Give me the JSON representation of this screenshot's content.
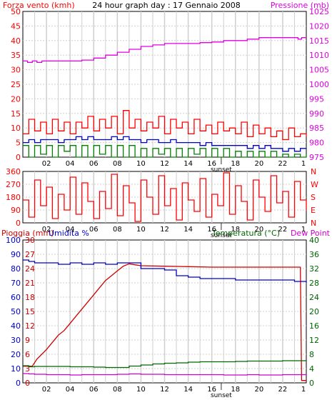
{
  "page": {
    "title": "24 hour graph day : 17 Gennaio 2008",
    "sunset_label": "sunset"
  },
  "colors": {
    "wind": "#ff0000",
    "pressure": "#e000e0",
    "gust": "#0000cc",
    "wind_green": "#008000",
    "direction": "#ff0000",
    "rain": "#cc0000",
    "humidity": "#0000cc",
    "temperature": "#006600",
    "dewpoint": "#cc00cc",
    "grid": "#cfcfcf",
    "sunset_line": "#333333"
  },
  "chart_data": [
    {
      "id": "wind_pressure",
      "type": "line",
      "left_axis_label": "Forza vento (kmh)",
      "right_axis_label": "Pressione (mb)",
      "ylim_left": [
        0,
        50
      ],
      "yticks_left": [
        0,
        5,
        10,
        15,
        20,
        25,
        30,
        35,
        40,
        45,
        50
      ],
      "ylim_right": [
        975,
        1025
      ],
      "yticks_right": [
        975,
        980,
        985,
        990,
        995,
        1000,
        1005,
        1010,
        1015,
        1020,
        1025
      ],
      "x_range": [
        0,
        24
      ],
      "x_ticks": [
        "02",
        "04",
        "06",
        "08",
        "10",
        "12",
        "14",
        "16",
        "18",
        "20",
        "22",
        "1"
      ],
      "sunset_hour": 16.8,
      "series": [
        {
          "key": "pressure",
          "axis": "right",
          "x": [
            0,
            0.4,
            0.8,
            1.2,
            1.6,
            2.0,
            3.0,
            4.0,
            5.0,
            6.0,
            7.0,
            8.0,
            9.0,
            10.0,
            11.0,
            12.0,
            13.0,
            14.0,
            15.0,
            16.0,
            17.0,
            18.0,
            19.0,
            20.0,
            21.0,
            22.0,
            23.0,
            23.3,
            23.6,
            24.0
          ],
          "y": [
            1008,
            1007.5,
            1008,
            1007.5,
            1008,
            1008,
            1008,
            1008,
            1008.3,
            1009,
            1010,
            1011,
            1012,
            1013,
            1013.5,
            1014,
            1014,
            1014,
            1014.3,
            1014.5,
            1015,
            1015,
            1015.5,
            1016,
            1016,
            1016,
            1016,
            1015.5,
            1016,
            1016
          ]
        },
        {
          "key": "wind",
          "axis": "left",
          "x": [
            0,
            0.5,
            1,
            1.5,
            2,
            2.5,
            3,
            3.5,
            4,
            4.5,
            5,
            5.5,
            6,
            6.5,
            7,
            7.5,
            8,
            8.5,
            9,
            9.5,
            10,
            10.5,
            11,
            11.5,
            12,
            12.5,
            13,
            13.5,
            14,
            14.5,
            15,
            15.5,
            16,
            16.5,
            17,
            17.5,
            18,
            18.5,
            19,
            19.5,
            20,
            20.5,
            21,
            21.5,
            22,
            22.5,
            23,
            23.5,
            24
          ],
          "y": [
            8,
            13,
            9,
            12,
            8,
            13,
            9,
            12,
            8,
            12,
            10,
            14,
            9,
            13,
            10,
            14,
            8,
            16,
            10,
            13,
            9,
            12,
            10,
            14,
            8,
            13,
            10,
            12,
            8,
            13,
            9,
            11,
            8,
            12,
            9,
            10,
            8,
            12,
            7,
            11,
            8,
            10,
            7,
            9,
            6,
            10,
            7,
            8,
            7
          ]
        },
        {
          "key": "gust",
          "axis": "left",
          "x": [
            0,
            0.5,
            1,
            1.5,
            2,
            2.5,
            3,
            3.5,
            4,
            4.5,
            5,
            5.5,
            6,
            6.5,
            7,
            7.5,
            8,
            8.5,
            9,
            9.5,
            10,
            10.5,
            11,
            11.5,
            12,
            12.5,
            13,
            13.5,
            14,
            14.5,
            15,
            15.5,
            16,
            16.5,
            17,
            17.5,
            18,
            18.5,
            19,
            19.5,
            20,
            20.5,
            21,
            21.5,
            22,
            22.5,
            23,
            23.5,
            24
          ],
          "y": [
            5,
            6,
            5,
            6,
            6,
            6,
            5,
            6,
            6,
            7,
            6,
            7,
            6,
            6,
            6,
            7,
            6,
            7,
            6,
            6,
            5,
            6,
            6,
            5,
            5,
            6,
            5,
            5,
            5,
            5,
            4,
            5,
            4,
            4,
            4,
            4,
            4,
            4,
            3,
            4,
            3,
            4,
            3,
            3,
            2,
            3,
            2,
            3,
            3
          ]
        },
        {
          "key": "wind_green",
          "axis": "left",
          "x": [
            0,
            0.5,
            1,
            1.5,
            2,
            2.5,
            3,
            3.5,
            4,
            4.5,
            5,
            5.5,
            6,
            6.5,
            7,
            7.5,
            8,
            8.5,
            9,
            9.5,
            10,
            10.5,
            11,
            11.5,
            12,
            12.5,
            13,
            13.5,
            14,
            14.5,
            15,
            15.5,
            16,
            16.5,
            17,
            17.5,
            18,
            18.5,
            19,
            19.5,
            20,
            20.5,
            21,
            21.5,
            22,
            22.5,
            23,
            23.5,
            24
          ],
          "y": [
            4,
            0,
            4,
            1,
            4,
            0,
            4,
            2,
            4,
            0,
            4,
            0,
            4,
            1,
            4,
            0,
            4,
            0,
            4,
            0,
            3,
            0,
            3,
            1,
            3,
            0,
            3,
            0,
            3,
            1,
            3,
            0,
            3,
            0,
            3,
            0,
            2,
            0,
            2,
            0,
            2,
            0,
            2,
            0,
            1,
            0,
            1,
            0,
            1
          ]
        }
      ]
    },
    {
      "id": "direction",
      "type": "line",
      "ylim": [
        0,
        360
      ],
      "yticks": [
        0,
        90,
        180,
        270,
        360
      ],
      "right_labels": [
        "N",
        "W",
        "S",
        "E",
        "N"
      ],
      "x_range": [
        0,
        24
      ],
      "x_ticks": [
        "02",
        "04",
        "06",
        "08",
        "10",
        "12",
        "14",
        "16",
        "18",
        "20",
        "22",
        "1"
      ],
      "sunset_hour": 16.8,
      "series": [
        {
          "key": "direction",
          "axis": "left",
          "x": [
            0,
            0.5,
            1,
            1.5,
            2,
            2.5,
            3,
            3.5,
            4,
            4.5,
            5,
            5.5,
            6,
            6.5,
            7,
            7.5,
            8,
            8.5,
            9,
            9.5,
            10,
            10.5,
            11,
            11.5,
            12,
            12.5,
            13,
            13.5,
            14,
            14.5,
            15,
            15.5,
            16,
            16.5,
            17,
            17.5,
            18,
            18.5,
            19,
            19.5,
            20,
            20.5,
            21,
            21.5,
            22,
            22.5,
            23,
            23.5,
            24
          ],
          "y": [
            160,
            40,
            300,
            120,
            250,
            30,
            200,
            90,
            320,
            60,
            280,
            150,
            30,
            220,
            100,
            340,
            50,
            260,
            140,
            10,
            300,
            180,
            60,
            330,
            120,
            240,
            20,
            280,
            160,
            80,
            310,
            40,
            200,
            120,
            350,
            60,
            260,
            150,
            20,
            300,
            180,
            80,
            330,
            140,
            220,
            40,
            290,
            160,
            90
          ]
        }
      ]
    },
    {
      "id": "rain_humidity_temp",
      "type": "line",
      "labels": [
        "Pioggia (mm)",
        "Umidita %",
        "Temperatura (°C)",
        "Dew Point"
      ],
      "ylim_humidity": [
        0,
        100
      ],
      "yticks_humidity": [
        0,
        10,
        20,
        30,
        40,
        50,
        60,
        70,
        80,
        90,
        100
      ],
      "ylim_rain": [
        0,
        30
      ],
      "yticks_rain": [
        0,
        3,
        6,
        9,
        12,
        15,
        18,
        21,
        24,
        27,
        30
      ],
      "ylim_temp": [
        0,
        40
      ],
      "yticks_temp": [
        0,
        4,
        8,
        12,
        16,
        20,
        24,
        28,
        32,
        36,
        40
      ],
      "x_range": [
        0,
        24
      ],
      "x_ticks": [
        "02",
        "04",
        "06",
        "08",
        "10",
        "12",
        "14",
        "16",
        "18",
        "20",
        "22",
        "1"
      ],
      "sunset_hour": 16.8,
      "series": [
        {
          "key": "rain",
          "axis": "rain",
          "x": [
            0,
            0.8,
            1.2,
            1.6,
            2.0,
            2.5,
            3.0,
            3.5,
            4.0,
            4.5,
            5.0,
            5.5,
            6.0,
            6.5,
            7.0,
            7.5,
            8.0,
            8.5,
            9.0,
            9.5,
            10.0,
            12.0,
            14.0,
            16.0,
            18.0,
            20.0,
            22.0,
            23.5,
            23.6,
            24.0
          ],
          "y": [
            3.5,
            3.5,
            5,
            6,
            7,
            8.5,
            10,
            11,
            12.5,
            14,
            15.5,
            17,
            18.5,
            20,
            21.5,
            22.5,
            23.5,
            24.5,
            25,
            24.8,
            24.6,
            24.5,
            24.4,
            24.3,
            24.3,
            24.3,
            24.3,
            24.3,
            0.5,
            0.5
          ]
        },
        {
          "key": "humidity",
          "axis": "humidity",
          "x": [
            0,
            0.5,
            1,
            1.5,
            2,
            3,
            4,
            5,
            6,
            7,
            8,
            9,
            10,
            11,
            12,
            13,
            14,
            15,
            16,
            17,
            18,
            19,
            20,
            21,
            22,
            23,
            24
          ],
          "y": [
            86,
            85,
            84,
            84,
            84,
            83,
            84,
            83,
            84,
            83,
            84,
            84,
            80,
            80,
            79,
            75,
            74,
            73,
            73,
            73,
            72,
            72,
            72,
            72,
            72,
            71,
            70
          ]
        },
        {
          "key": "temperature",
          "axis": "temp",
          "x": [
            0,
            0.5,
            1,
            2,
            3,
            4,
            5,
            6,
            7,
            8,
            9,
            10,
            11,
            12,
            13,
            14,
            15,
            16,
            17,
            18,
            19,
            20,
            21,
            22,
            23,
            24
          ],
          "y": [
            4.8,
            4.5,
            4.6,
            4.6,
            4.6,
            4.5,
            4.5,
            4.4,
            4.3,
            4.3,
            4.7,
            5.0,
            5.3,
            5.5,
            5.6,
            5.8,
            5.9,
            5.9,
            5.9,
            6.0,
            6.1,
            6.1,
            6.1,
            6.2,
            6.2,
            6.2
          ]
        },
        {
          "key": "dewpoint",
          "axis": "temp",
          "x": [
            0,
            0.5,
            1,
            2,
            3,
            4,
            5,
            6,
            7,
            8,
            9,
            10,
            11,
            12,
            13,
            14,
            15,
            16,
            17,
            18,
            19,
            20,
            21,
            22,
            23,
            24
          ],
          "y": [
            2.6,
            2.5,
            2.4,
            2.3,
            2.3,
            2.2,
            2.3,
            2.3,
            2.3,
            2.4,
            2.5,
            2.4,
            2.4,
            2.3,
            2.3,
            2.3,
            2.3,
            2.3,
            2.2,
            2.2,
            2.3,
            2.2,
            2.2,
            2.3,
            2.3,
            2.2
          ]
        }
      ]
    }
  ]
}
